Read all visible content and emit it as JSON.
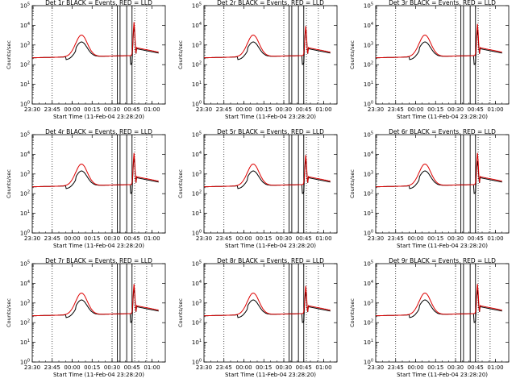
{
  "figure": {
    "run_label": "Start Time (11-Feb-04 23:28:20)"
  },
  "chart_data": [
    {
      "type": "line",
      "title": "Det 1r BLACK = Events, RED = LLD",
      "ylabel": "Counts/sec",
      "xlabel": "Start Time (11-Feb-04 23:28:20)",
      "xlim_min": [
        0,
        100
      ],
      "ylim_log10": [
        0,
        5
      ],
      "yticks": [
        "10^0",
        "10^1",
        "10^2",
        "10^3",
        "10^4",
        "10^5"
      ],
      "xticks": [
        {
          "t": 0,
          "label": "23:30"
        },
        {
          "t": 15,
          "label": "23:45"
        },
        {
          "t": 30,
          "label": "00:00"
        },
        {
          "t": 45,
          "label": "00:15"
        },
        {
          "t": 60,
          "label": "00:30"
        },
        {
          "t": 75,
          "label": "00:45"
        },
        {
          "t": 90,
          "label": "01:00"
        }
      ],
      "dotted_vlines": [
        15,
        60,
        77,
        86
      ],
      "solid_vlines": [
        64,
        66,
        71,
        75
      ],
      "peak2_log10": 3.9,
      "peak2_red_log10": 4.1,
      "series": [
        {
          "name": "Events",
          "color": "#000000"
        },
        {
          "name": "LLD",
          "color": "#dd0000"
        }
      ]
    },
    {
      "type": "line",
      "title": "Det 2r BLACK = Events, RED = LLD",
      "ylabel": "Counts/sec",
      "xlabel": "Start Time (11-Feb-04 23:28:20)",
      "xlim_min": [
        0,
        100
      ],
      "ylim_log10": [
        0,
        5
      ],
      "yticks": [
        "10^0",
        "10^1",
        "10^2",
        "10^3",
        "10^4",
        "10^5"
      ],
      "xticks": [
        {
          "t": 0,
          "label": "23:30"
        },
        {
          "t": 15,
          "label": "23:45"
        },
        {
          "t": 30,
          "label": "00:00"
        },
        {
          "t": 45,
          "label": "00:15"
        },
        {
          "t": 60,
          "label": "00:30"
        },
        {
          "t": 75,
          "label": "00:45"
        },
        {
          "t": 90,
          "label": "01:00"
        }
      ],
      "dotted_vlines": [
        15,
        60,
        77,
        86
      ],
      "solid_vlines": [
        64,
        66,
        71,
        75
      ],
      "peak2_log10": 3.8,
      "peak2_red_log10": 3.9,
      "series": [
        {
          "name": "Events",
          "color": "#000000"
        },
        {
          "name": "LLD",
          "color": "#dd0000"
        }
      ]
    },
    {
      "type": "line",
      "title": "Det 3r BLACK = Events, RED = LLD",
      "ylabel": "Counts/sec",
      "xlabel": "Start Time (11-Feb-04 23:28:20)",
      "xlim_min": [
        0,
        100
      ],
      "ylim_log10": [
        0,
        5
      ],
      "yticks": [
        "10^0",
        "10^1",
        "10^2",
        "10^3",
        "10^4",
        "10^5"
      ],
      "xticks": [
        {
          "t": 0,
          "label": "23:30"
        },
        {
          "t": 15,
          "label": "23:45"
        },
        {
          "t": 30,
          "label": "00:00"
        },
        {
          "t": 45,
          "label": "00:15"
        },
        {
          "t": 60,
          "label": "00:30"
        },
        {
          "t": 75,
          "label": "00:45"
        },
        {
          "t": 90,
          "label": "01:00"
        }
      ],
      "dotted_vlines": [
        15,
        60,
        77,
        86
      ],
      "solid_vlines": [
        64,
        66,
        71,
        75
      ],
      "peak2_log10": 3.7,
      "peak2_red_log10": 4.0,
      "series": [
        {
          "name": "Events",
          "color": "#000000"
        },
        {
          "name": "LLD",
          "color": "#dd0000"
        }
      ]
    },
    {
      "type": "line",
      "title": "Det 4r BLACK = Events, RED = LLD",
      "ylabel": "Counts/sec",
      "xlabel": "Start Time (11-Feb-04 23:28:20)",
      "xlim_min": [
        0,
        100
      ],
      "ylim_log10": [
        0,
        5
      ],
      "yticks": [
        "10^0",
        "10^1",
        "10^2",
        "10^3",
        "10^4",
        "10^5"
      ],
      "xticks": [
        {
          "t": 0,
          "label": "23:30"
        },
        {
          "t": 15,
          "label": "23:45"
        },
        {
          "t": 30,
          "label": "00:00"
        },
        {
          "t": 45,
          "label": "00:15"
        },
        {
          "t": 60,
          "label": "00:30"
        },
        {
          "t": 75,
          "label": "00:45"
        },
        {
          "t": 90,
          "label": "01:00"
        }
      ],
      "dotted_vlines": [
        15,
        60,
        77,
        86
      ],
      "solid_vlines": [
        64,
        66,
        71,
        75
      ],
      "peak2_log10": 3.8,
      "peak2_red_log10": 4.0,
      "series": [
        {
          "name": "Events",
          "color": "#000000"
        },
        {
          "name": "LLD",
          "color": "#dd0000"
        }
      ]
    },
    {
      "type": "line",
      "title": "Det 5r BLACK = Events, RED = LLD",
      "ylabel": "Counts/sec",
      "xlabel": "Start Time (11-Feb-04 23:28:20)",
      "xlim_min": [
        0,
        100
      ],
      "ylim_log10": [
        0,
        5
      ],
      "yticks": [
        "10^0",
        "10^1",
        "10^2",
        "10^3",
        "10^4",
        "10^5"
      ],
      "xticks": [
        {
          "t": 0,
          "label": "23:30"
        },
        {
          "t": 15,
          "label": "23:45"
        },
        {
          "t": 30,
          "label": "00:00"
        },
        {
          "t": 45,
          "label": "00:15"
        },
        {
          "t": 60,
          "label": "00:30"
        },
        {
          "t": 75,
          "label": "00:45"
        },
        {
          "t": 90,
          "label": "01:00"
        }
      ],
      "dotted_vlines": [
        15,
        60,
        77,
        86
      ],
      "solid_vlines": [
        64,
        66,
        71,
        75
      ],
      "peak2_log10": 3.7,
      "peak2_red_log10": 3.9,
      "series": [
        {
          "name": "Events",
          "color": "#000000"
        },
        {
          "name": "LLD",
          "color": "#dd0000"
        }
      ]
    },
    {
      "type": "line",
      "title": "Det 6r BLACK = Events, RED = LLD",
      "ylabel": "Counts/sec",
      "xlabel": "Start Time (11-Feb-04 23:28:20)",
      "xlim_min": [
        0,
        100
      ],
      "ylim_log10": [
        0,
        5
      ],
      "yticks": [
        "10^0",
        "10^1",
        "10^2",
        "10^3",
        "10^4",
        "10^5"
      ],
      "xticks": [
        {
          "t": 0,
          "label": "23:30"
        },
        {
          "t": 15,
          "label": "23:45"
        },
        {
          "t": 30,
          "label": "00:00"
        },
        {
          "t": 45,
          "label": "00:15"
        },
        {
          "t": 60,
          "label": "00:30"
        },
        {
          "t": 75,
          "label": "00:45"
        },
        {
          "t": 90,
          "label": "01:00"
        }
      ],
      "dotted_vlines": [
        15,
        60,
        77,
        86
      ],
      "solid_vlines": [
        64,
        66,
        71,
        75
      ],
      "peak2_log10": 3.6,
      "peak2_red_log10": 4.0,
      "series": [
        {
          "name": "Events",
          "color": "#000000"
        },
        {
          "name": "LLD",
          "color": "#dd0000"
        }
      ]
    },
    {
      "type": "line",
      "title": "Det 7r BLACK = Events, RED = LLD",
      "ylabel": "Counts/sec",
      "xlabel": "Start Time (11-Feb-04 23:28:20)",
      "xlim_min": [
        0,
        100
      ],
      "ylim_log10": [
        0,
        5
      ],
      "yticks": [
        "10^0",
        "10^1",
        "10^2",
        "10^3",
        "10^4",
        "10^5"
      ],
      "xticks": [
        {
          "t": 0,
          "label": "23:30"
        },
        {
          "t": 15,
          "label": "23:45"
        },
        {
          "t": 30,
          "label": "00:00"
        },
        {
          "t": 45,
          "label": "00:15"
        },
        {
          "t": 60,
          "label": "00:30"
        },
        {
          "t": 75,
          "label": "00:45"
        },
        {
          "t": 90,
          "label": "01:00"
        }
      ],
      "dotted_vlines": [
        15,
        60,
        77,
        86
      ],
      "solid_vlines": [
        64,
        66,
        71,
        75
      ],
      "peak2_log10": 3.7,
      "peak2_red_log10": 3.9,
      "series": [
        {
          "name": "Events",
          "color": "#000000"
        },
        {
          "name": "LLD",
          "color": "#dd0000"
        }
      ]
    },
    {
      "type": "line",
      "title": "Det 8r BLACK = Events, RED = LLD",
      "ylabel": "Counts/sec",
      "xlabel": "Start Time (11-Feb-04 23:28:20)",
      "xlim_min": [
        0,
        100
      ],
      "ylim_log10": [
        0,
        5
      ],
      "yticks": [
        "10^0",
        "10^1",
        "10^2",
        "10^3",
        "10^4",
        "10^5"
      ],
      "xticks": [
        {
          "t": 0,
          "label": "23:30"
        },
        {
          "t": 15,
          "label": "23:45"
        },
        {
          "t": 30,
          "label": "00:00"
        },
        {
          "t": 45,
          "label": "00:15"
        },
        {
          "t": 60,
          "label": "00:30"
        },
        {
          "t": 75,
          "label": "00:45"
        },
        {
          "t": 90,
          "label": "01:00"
        }
      ],
      "dotted_vlines": [
        15,
        60,
        77,
        86
      ],
      "solid_vlines": [
        64,
        66,
        71,
        75
      ],
      "peak2_log10": 3.5,
      "peak2_red_log10": 3.8,
      "series": [
        {
          "name": "Events",
          "color": "#000000"
        },
        {
          "name": "LLD",
          "color": "#dd0000"
        }
      ]
    },
    {
      "type": "line",
      "title": "Det 9r BLACK = Events, RED = LLD",
      "ylabel": "Counts/sec",
      "xlabel": "Start Time (11-Feb-04 23:28:20)",
      "xlim_min": [
        0,
        100
      ],
      "ylim_log10": [
        0,
        5
      ],
      "yticks": [
        "10^0",
        "10^1",
        "10^2",
        "10^3",
        "10^4",
        "10^5"
      ],
      "xticks": [
        {
          "t": 0,
          "label": "23:30"
        },
        {
          "t": 15,
          "label": "23:45"
        },
        {
          "t": 30,
          "label": "00:00"
        },
        {
          "t": 45,
          "label": "00:15"
        },
        {
          "t": 60,
          "label": "00:30"
        },
        {
          "t": 75,
          "label": "00:45"
        },
        {
          "t": 90,
          "label": "01:00"
        }
      ],
      "dotted_vlines": [
        15,
        60,
        77,
        86
      ],
      "solid_vlines": [
        64,
        66,
        71,
        75
      ],
      "peak2_log10": 3.6,
      "peak2_red_log10": 3.9,
      "series": [
        {
          "name": "Events",
          "color": "#000000"
        },
        {
          "name": "LLD",
          "color": "#dd0000"
        }
      ]
    }
  ]
}
